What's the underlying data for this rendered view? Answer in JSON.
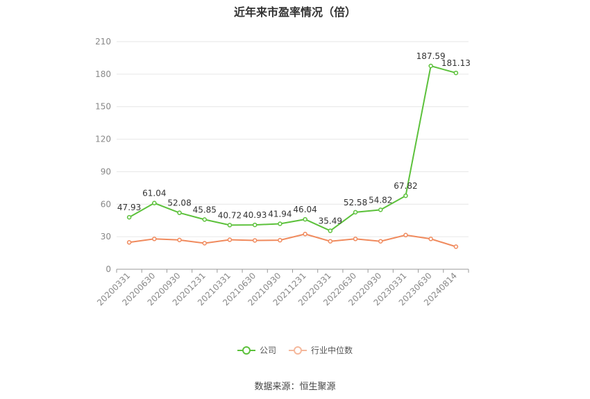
{
  "chart_data": {
    "type": "line",
    "title": "近年来市盈率情况（倍）",
    "categories": [
      "20200331",
      "20200630",
      "20200930",
      "20201231",
      "20210331",
      "20210630",
      "20210930",
      "20211231",
      "20220331",
      "20220630",
      "20220930",
      "20230331",
      "20230630",
      "20240814"
    ],
    "series": [
      {
        "name": "公司",
        "color": "#5cc13b",
        "values": [
          47.93,
          61.04,
          52.08,
          45.85,
          40.72,
          40.93,
          41.94,
          46.04,
          35.49,
          52.58,
          54.82,
          67.82,
          187.59,
          181.13
        ],
        "show_labels": true
      },
      {
        "name": "行业中位数",
        "color": "#f08a5d",
        "values": [
          24.8,
          28.0,
          27.0,
          24.0,
          27.2,
          26.6,
          26.8,
          32.5,
          25.8,
          28.0,
          25.8,
          31.5,
          28.0,
          20.8
        ],
        "show_labels": false
      }
    ],
    "ylim": [
      0,
      210
    ],
    "yticks": [
      0,
      30,
      60,
      90,
      120,
      150,
      180,
      210
    ],
    "grid": true,
    "legend_position": "bottom"
  },
  "footer": {
    "source": "数据来源：恒生聚源"
  }
}
